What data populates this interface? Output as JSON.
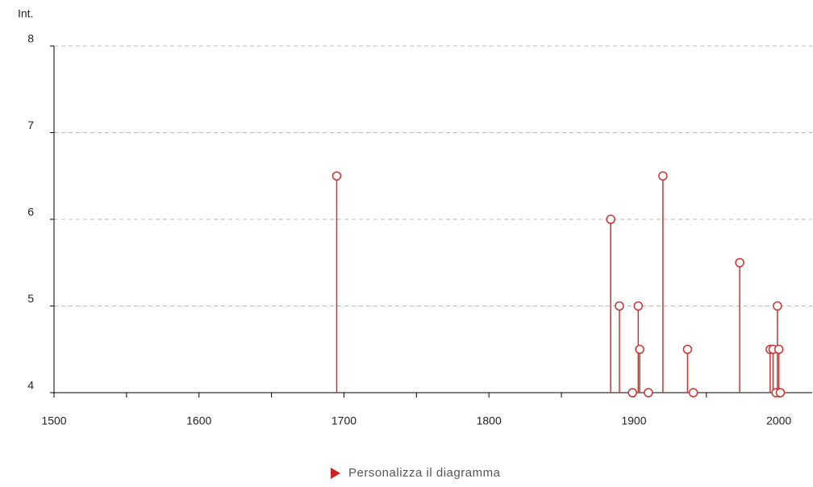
{
  "chart_data": {
    "type": "stem",
    "ylabel": "Int.",
    "x": [
      1695,
      1884,
      1890,
      1899,
      1903,
      1904,
      1910,
      1920,
      1937,
      1941,
      1973,
      1994,
      1996,
      1998,
      1999,
      2000,
      2001
    ],
    "values": [
      6.5,
      6,
      5,
      4,
      5,
      4.5,
      4,
      6.5,
      4.5,
      4,
      5.5,
      4.5,
      4.5,
      4,
      5,
      4.5,
      4
    ],
    "color": "#cc3333",
    "xlim": [
      1500,
      2023
    ],
    "xticks": [
      1500,
      1600,
      1700,
      1800,
      1900,
      2000
    ],
    "xminorticks": [
      1550,
      1650,
      1750,
      1850,
      1950
    ],
    "ylim": [
      4,
      8
    ],
    "yticks": [
      4,
      5,
      6,
      7,
      8
    ],
    "grid": true
  },
  "link": "Personalizza il diagramma"
}
